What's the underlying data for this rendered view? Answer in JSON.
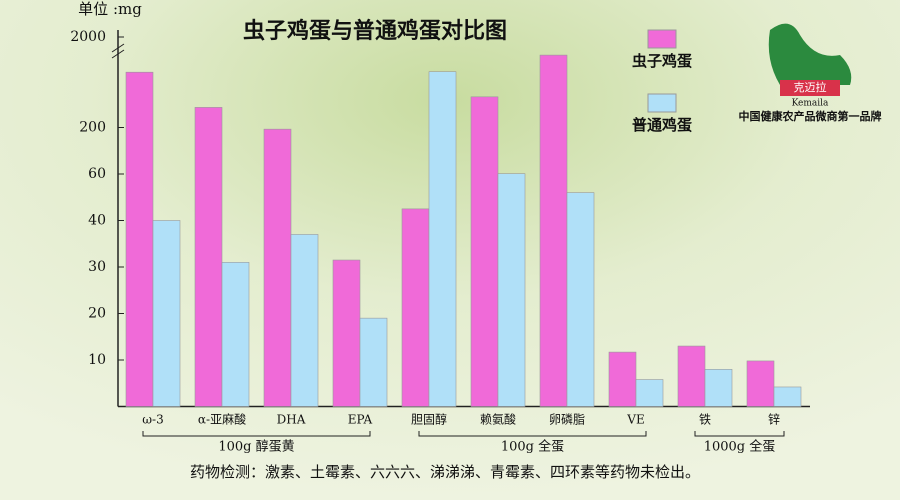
{
  "chart_data": {
    "type": "bar",
    "title": "虫子鸡蛋与普通鸡蛋对比图",
    "y_label": "单位 :mg",
    "categories": [
      "ω-3",
      "α-亚麻酸",
      "DHA",
      "EPA",
      "胆固醇",
      "赖氨酸",
      "卵磷脂",
      "VE",
      "铁",
      "锌"
    ],
    "groups": [
      "100g 醇蛋黄",
      "100g 全蛋",
      "1000g 全蛋"
    ],
    "series": [
      {
        "name": "虫子鸡蛋",
        "color": "#f06ad8",
        "values": [
          1300,
          600,
          195,
          31.5,
          45,
          810,
          1640,
          11.7,
          13,
          9.8
        ]
      },
      {
        "name": "普通鸡蛋",
        "color": "#b0e0f8",
        "values": [
          40,
          31,
          37,
          19,
          1310,
          61,
          52,
          5.8,
          8,
          4.2
        ]
      }
    ],
    "ylim": [
      0,
      2000
    ],
    "yticks": [
      10,
      20,
      30,
      40,
      60,
      200,
      2000
    ],
    "footnote": "药物检测：激素、土霉素、六六六、涕涕涕、青霉素、四环素等药物未检出。",
    "brand": {
      "name": "克迈拉",
      "latin": "Kemaila",
      "slogan": "中国健康农产品微商第一品牌"
    }
  }
}
